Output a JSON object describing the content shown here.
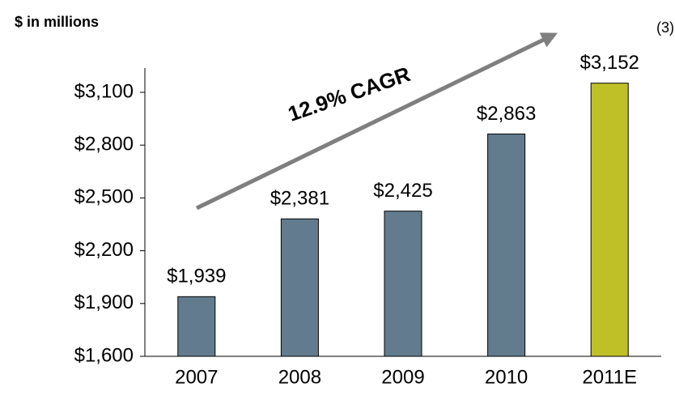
{
  "chart_data": {
    "type": "bar",
    "subtitle": "$ in millions",
    "footnote": "(3)",
    "annotation": "12.9% CAGR",
    "categories": [
      "2007",
      "2008",
      "2009",
      "2010",
      "2011E"
    ],
    "values": [
      1939,
      2381,
      2425,
      2863,
      3152
    ],
    "value_labels": [
      "$1,939",
      "$2,381",
      "$2,425",
      "$2,863",
      "$3,152"
    ],
    "colors": [
      "#627c8e",
      "#627c8e",
      "#627c8e",
      "#627c8e",
      "#bfc028"
    ],
    "ylim": [
      1600,
      3100
    ],
    "yticks": [
      {
        "value": 1600,
        "label": "$1,600"
      },
      {
        "value": 1900,
        "label": "$1,900"
      },
      {
        "value": 2200,
        "label": "$2,200"
      },
      {
        "value": 2500,
        "label": "$2,500"
      },
      {
        "value": 2800,
        "label": "$2,800"
      },
      {
        "value": 3100,
        "label": "$3,100"
      }
    ]
  }
}
